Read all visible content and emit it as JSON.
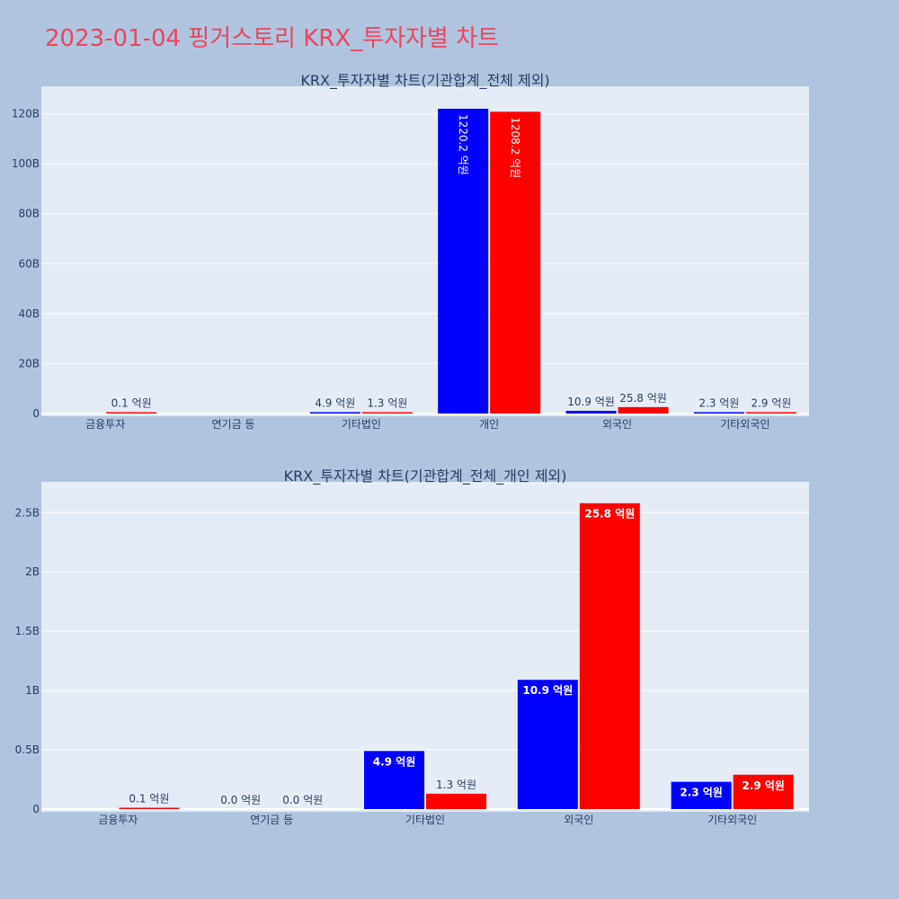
{
  "page": {
    "title": "2023-01-04 핑거스토리 KRX_투자자별 차트"
  },
  "colors": {
    "buy": "#0000ff",
    "sell": "#ff0000",
    "plot_bg": "#e5ecf6",
    "page_bg": "#b0c4de",
    "title": "#e8475f"
  },
  "chart_data": [
    {
      "type": "bar",
      "title": "KRX_투자자별 차트(기관합계_전체 제외)",
      "categories": [
        "금융투자",
        "연기금 등",
        "기타법인",
        "개인",
        "외국인",
        "기타외국인"
      ],
      "series": [
        {
          "values": [
            null,
            null,
            0.49,
            122.02,
            1.09,
            0.23
          ],
          "labels": [
            "",
            "",
            "4.9 억원",
            "1220.2 억원",
            "10.9 억원",
            "2.3 억원"
          ]
        },
        {
          "values": [
            0.01,
            null,
            0.13,
            120.82,
            2.58,
            0.29
          ],
          "labels": [
            "0.1 억원",
            "",
            "1.3 억원",
            "1208.2 억원",
            "25.8 억원",
            "2.9 억원"
          ]
        }
      ],
      "yticks": [
        0,
        20,
        40,
        60,
        80,
        100,
        120
      ],
      "yticklabels": [
        "0",
        "20B",
        "40B",
        "60B",
        "80B",
        "100B",
        "120B"
      ],
      "ylim": [
        0,
        131
      ]
    },
    {
      "type": "bar",
      "title": "KRX_투자자별 차트(기관합계_전체_개인 제외)",
      "categories": [
        "금융투자",
        "연기금 등",
        "기타법인",
        "외국인",
        "기타외국인"
      ],
      "series": [
        {
          "values": [
            null,
            0.0,
            0.49,
            1.09,
            0.23
          ],
          "labels": [
            "",
            "0.0 억원",
            "4.9 억원",
            "10.9 억원",
            "2.3 억원"
          ]
        },
        {
          "values": [
            0.01,
            0.0,
            0.13,
            2.58,
            0.29
          ],
          "labels": [
            "0.1 억원",
            "0.0 억원",
            "1.3 억원",
            "25.8 억원",
            "2.9 억원"
          ]
        }
      ],
      "yticks": [
        0,
        0.5,
        1,
        1.5,
        2,
        2.5
      ],
      "yticklabels": [
        "0",
        "0.5B",
        "1B",
        "1.5B",
        "2B",
        "2.5B"
      ],
      "ylim": [
        0,
        2.76
      ]
    }
  ]
}
